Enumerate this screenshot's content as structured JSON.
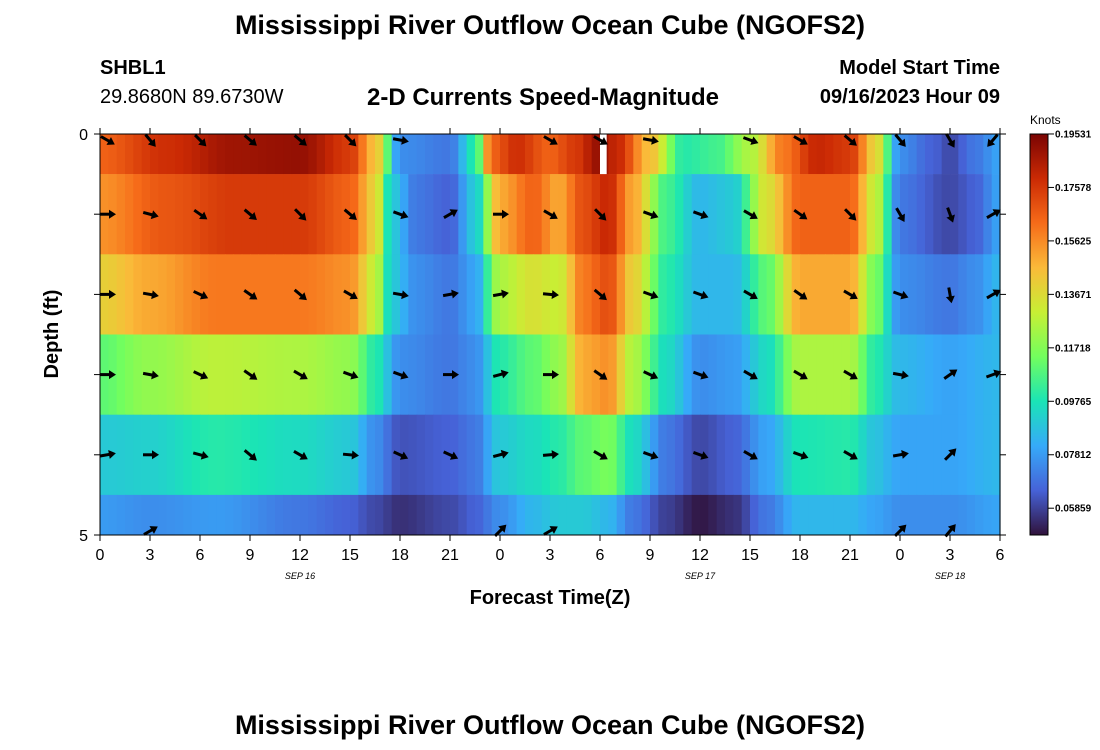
{
  "header": {
    "title": "Mississippi River Outflow Ocean Cube (NGOFS2)",
    "station_id": "SHBL1",
    "coords": "29.8680N  89.6730W",
    "subtitle": "2-D Currents Speed-Magnitude",
    "model_start_label": "Model Start Time",
    "model_start_value": "09/16/2023 Hour 09"
  },
  "footer": {
    "title": "Mississippi River Outflow Ocean Cube (NGOFS2)"
  },
  "colors": {
    "colormap": [
      "#30123b",
      "#4662d7",
      "#36aaf9",
      "#1ae4b6",
      "#72fe5e",
      "#c8ef34",
      "#faba39",
      "#f66b19",
      "#cb2a04",
      "#7a0403"
    ],
    "arrow": "#000000"
  },
  "chart_data": {
    "type": "heatmap",
    "xlabel": "Forecast Time(Z)",
    "ylabel": "Depth (ft)",
    "xlim": [
      0,
      54
    ],
    "ylim": [
      0,
      5
    ],
    "x_tick_values": [
      0,
      3,
      6,
      9,
      12,
      15,
      18,
      21,
      24,
      27,
      30,
      33,
      36,
      39,
      42,
      45,
      48,
      51,
      54
    ],
    "x_tick_labels": [
      "0",
      "3",
      "6",
      "9",
      "12",
      "15",
      "18",
      "21",
      "0",
      "3",
      "6",
      "9",
      "12",
      "15",
      "18",
      "21",
      "0",
      "3",
      "6"
    ],
    "y_tick_labels": [
      "0",
      "5"
    ],
    "date_labels": [
      {
        "x": 12,
        "label": "SEP 16"
      },
      {
        "x": 36,
        "label": "SEP 17"
      },
      {
        "x": 51,
        "label": "SEP 18"
      }
    ],
    "colorbar": {
      "label": "Knots",
      "min": 0.0488,
      "max": 0.1953,
      "tick_labels": [
        "0.19531",
        "0.17578",
        "0.15625",
        "0.13671",
        "0.11718",
        "0.09765",
        "0.07812",
        "0.05859"
      ],
      "tick_values": [
        0.19531,
        0.17578,
        0.15625,
        0.13671,
        0.11718,
        0.09765,
        0.07812,
        0.05859
      ]
    },
    "layers": [
      {
        "depth_top": 0,
        "depth_bottom": 0.5,
        "knots": [
          {
            "x": 0,
            "v": 0.165
          },
          {
            "x": 4,
            "v": 0.178
          },
          {
            "x": 8,
            "v": 0.188
          },
          {
            "x": 12,
            "v": 0.19
          },
          {
            "x": 15,
            "v": 0.175
          },
          {
            "x": 16.5,
            "v": 0.145
          },
          {
            "x": 18,
            "v": 0.075
          },
          {
            "x": 21,
            "v": 0.07
          },
          {
            "x": 22.5,
            "v": 0.1
          },
          {
            "x": 23.5,
            "v": 0.165
          },
          {
            "x": 25,
            "v": 0.178
          },
          {
            "x": 27,
            "v": 0.165
          },
          {
            "x": 28.5,
            "v": 0.175
          },
          {
            "x": 30,
            "v": 0.19
          },
          {
            "x": 31,
            "v": 0.18
          },
          {
            "x": 33,
            "v": 0.145
          },
          {
            "x": 35,
            "v": 0.1
          },
          {
            "x": 37,
            "v": 0.105
          },
          {
            "x": 39,
            "v": 0.125
          },
          {
            "x": 41,
            "v": 0.16
          },
          {
            "x": 43,
            "v": 0.18
          },
          {
            "x": 45,
            "v": 0.175
          },
          {
            "x": 46.5,
            "v": 0.14
          },
          {
            "x": 48,
            "v": 0.075
          },
          {
            "x": 50,
            "v": 0.065
          },
          {
            "x": 51,
            "v": 0.06
          },
          {
            "x": 52.5,
            "v": 0.07
          },
          {
            "x": 54,
            "v": 0.08
          }
        ]
      },
      {
        "depth_top": 0.5,
        "depth_bottom": 1.5,
        "knots": [
          {
            "x": 0,
            "v": 0.155
          },
          {
            "x": 4,
            "v": 0.168
          },
          {
            "x": 8,
            "v": 0.175
          },
          {
            "x": 12,
            "v": 0.175
          },
          {
            "x": 15,
            "v": 0.165
          },
          {
            "x": 16.5,
            "v": 0.14
          },
          {
            "x": 17.5,
            "v": 0.09
          },
          {
            "x": 19,
            "v": 0.07
          },
          {
            "x": 21,
            "v": 0.065
          },
          {
            "x": 22.5,
            "v": 0.09
          },
          {
            "x": 24,
            "v": 0.15
          },
          {
            "x": 26,
            "v": 0.165
          },
          {
            "x": 27.5,
            "v": 0.15
          },
          {
            "x": 29,
            "v": 0.17
          },
          {
            "x": 30.5,
            "v": 0.18
          },
          {
            "x": 32,
            "v": 0.15
          },
          {
            "x": 34,
            "v": 0.105
          },
          {
            "x": 36,
            "v": 0.085
          },
          {
            "x": 38,
            "v": 0.09
          },
          {
            "x": 40,
            "v": 0.135
          },
          {
            "x": 42,
            "v": 0.165
          },
          {
            "x": 45,
            "v": 0.165
          },
          {
            "x": 46.5,
            "v": 0.13
          },
          {
            "x": 48,
            "v": 0.07
          },
          {
            "x": 51,
            "v": 0.06
          },
          {
            "x": 52.5,
            "v": 0.065
          },
          {
            "x": 54,
            "v": 0.08
          }
        ]
      },
      {
        "depth_top": 1.5,
        "depth_bottom": 2.5,
        "knots": [
          {
            "x": 0,
            "v": 0.14
          },
          {
            "x": 3,
            "v": 0.15
          },
          {
            "x": 7,
            "v": 0.16
          },
          {
            "x": 12,
            "v": 0.16
          },
          {
            "x": 15,
            "v": 0.155
          },
          {
            "x": 16.5,
            "v": 0.13
          },
          {
            "x": 17.5,
            "v": 0.09
          },
          {
            "x": 19,
            "v": 0.075
          },
          {
            "x": 21,
            "v": 0.07
          },
          {
            "x": 22.5,
            "v": 0.08
          },
          {
            "x": 24,
            "v": 0.125
          },
          {
            "x": 26,
            "v": 0.135
          },
          {
            "x": 27.5,
            "v": 0.13
          },
          {
            "x": 29,
            "v": 0.16
          },
          {
            "x": 30.5,
            "v": 0.17
          },
          {
            "x": 32,
            "v": 0.14
          },
          {
            "x": 34,
            "v": 0.1
          },
          {
            "x": 36,
            "v": 0.085
          },
          {
            "x": 38,
            "v": 0.085
          },
          {
            "x": 40,
            "v": 0.11
          },
          {
            "x": 42,
            "v": 0.15
          },
          {
            "x": 45,
            "v": 0.15
          },
          {
            "x": 46.5,
            "v": 0.115
          },
          {
            "x": 48,
            "v": 0.075
          },
          {
            "x": 51,
            "v": 0.07
          },
          {
            "x": 52.5,
            "v": 0.075
          },
          {
            "x": 54,
            "v": 0.085
          }
        ]
      },
      {
        "depth_top": 2.5,
        "depth_bottom": 3.5,
        "knots": [
          {
            "x": 0,
            "v": 0.11
          },
          {
            "x": 3,
            "v": 0.12
          },
          {
            "x": 7,
            "v": 0.128
          },
          {
            "x": 12,
            "v": 0.125
          },
          {
            "x": 15,
            "v": 0.12
          },
          {
            "x": 16.5,
            "v": 0.1
          },
          {
            "x": 18,
            "v": 0.075
          },
          {
            "x": 21,
            "v": 0.07
          },
          {
            "x": 22.5,
            "v": 0.075
          },
          {
            "x": 24,
            "v": 0.1
          },
          {
            "x": 26,
            "v": 0.11
          },
          {
            "x": 27.5,
            "v": 0.12
          },
          {
            "x": 29,
            "v": 0.15
          },
          {
            "x": 30.5,
            "v": 0.155
          },
          {
            "x": 32,
            "v": 0.125
          },
          {
            "x": 34,
            "v": 0.095
          },
          {
            "x": 36,
            "v": 0.075
          },
          {
            "x": 38,
            "v": 0.078
          },
          {
            "x": 40,
            "v": 0.095
          },
          {
            "x": 42,
            "v": 0.125
          },
          {
            "x": 45,
            "v": 0.125
          },
          {
            "x": 46.5,
            "v": 0.1
          },
          {
            "x": 48,
            "v": 0.085
          },
          {
            "x": 51,
            "v": 0.08
          },
          {
            "x": 54,
            "v": 0.085
          }
        ]
      },
      {
        "depth_top": 3.5,
        "depth_bottom": 4.5,
        "knots": [
          {
            "x": 0,
            "v": 0.09
          },
          {
            "x": 3,
            "v": 0.092
          },
          {
            "x": 7,
            "v": 0.1
          },
          {
            "x": 12,
            "v": 0.095
          },
          {
            "x": 15,
            "v": 0.09
          },
          {
            "x": 16.5,
            "v": 0.075
          },
          {
            "x": 18,
            "v": 0.062
          },
          {
            "x": 21,
            "v": 0.065
          },
          {
            "x": 22.5,
            "v": 0.07
          },
          {
            "x": 24,
            "v": 0.09
          },
          {
            "x": 26,
            "v": 0.095
          },
          {
            "x": 27.5,
            "v": 0.1
          },
          {
            "x": 29,
            "v": 0.11
          },
          {
            "x": 30.5,
            "v": 0.115
          },
          {
            "x": 32,
            "v": 0.095
          },
          {
            "x": 34,
            "v": 0.07
          },
          {
            "x": 36,
            "v": 0.06
          },
          {
            "x": 38,
            "v": 0.065
          },
          {
            "x": 40,
            "v": 0.08
          },
          {
            "x": 42,
            "v": 0.098
          },
          {
            "x": 45,
            "v": 0.1
          },
          {
            "x": 46.5,
            "v": 0.088
          },
          {
            "x": 48,
            "v": 0.08
          },
          {
            "x": 51,
            "v": 0.08
          },
          {
            "x": 54,
            "v": 0.085
          }
        ]
      },
      {
        "depth_top": 4.5,
        "depth_bottom": 5,
        "knots": [
          {
            "x": 0,
            "v": 0.078
          },
          {
            "x": 3,
            "v": 0.075
          },
          {
            "x": 7,
            "v": 0.078
          },
          {
            "x": 12,
            "v": 0.07
          },
          {
            "x": 15,
            "v": 0.065
          },
          {
            "x": 16.5,
            "v": 0.06
          },
          {
            "x": 18,
            "v": 0.055
          },
          {
            "x": 21,
            "v": 0.06
          },
          {
            "x": 22.5,
            "v": 0.065
          },
          {
            "x": 24,
            "v": 0.075
          },
          {
            "x": 26,
            "v": 0.085
          },
          {
            "x": 27.5,
            "v": 0.09
          },
          {
            "x": 29,
            "v": 0.09
          },
          {
            "x": 30.5,
            "v": 0.085
          },
          {
            "x": 32,
            "v": 0.07
          },
          {
            "x": 34,
            "v": 0.058
          },
          {
            "x": 36,
            "v": 0.05
          },
          {
            "x": 38,
            "v": 0.055
          },
          {
            "x": 40,
            "v": 0.07
          },
          {
            "x": 42,
            "v": 0.085
          },
          {
            "x": 45,
            "v": 0.085
          },
          {
            "x": 46.5,
            "v": 0.08
          },
          {
            "x": 48,
            "v": 0.075
          },
          {
            "x": 51,
            "v": 0.075
          },
          {
            "x": 54,
            "v": 0.08
          }
        ]
      }
    ],
    "arrow_times": [
      0,
      3,
      6,
      9,
      12,
      15,
      18,
      21,
      24,
      27,
      30,
      33,
      36,
      39,
      42,
      45,
      48,
      51,
      54
    ],
    "arrow_depths": [
      0,
      1,
      2,
      3,
      4,
      5
    ],
    "arrow_directions_deg": [
      [
        120,
        140,
        135,
        130,
        130,
        135,
        100,
        0,
        0,
        120,
        120,
        100,
        0,
        110,
        120,
        130,
        140,
        150,
        220
      ],
      [
        90,
        105,
        125,
        130,
        135,
        130,
        110,
        60,
        90,
        120,
        135,
        110,
        110,
        120,
        125,
        135,
        150,
        160,
        60
      ],
      [
        90,
        100,
        115,
        125,
        130,
        120,
        100,
        80,
        80,
        95,
        130,
        110,
        110,
        120,
        125,
        120,
        110,
        170,
        60
      ],
      [
        90,
        100,
        115,
        125,
        120,
        110,
        110,
        90,
        75,
        90,
        125,
        115,
        110,
        120,
        120,
        120,
        100,
        55,
        70
      ],
      [
        80,
        90,
        105,
        130,
        120,
        95,
        115,
        115,
        75,
        85,
        120,
        110,
        110,
        120,
        110,
        120,
        80,
        45,
        0
      ],
      [
        0,
        60,
        0,
        0,
        0,
        0,
        0,
        0,
        45,
        60,
        0,
        0,
        0,
        0,
        0,
        0,
        45,
        40,
        0
      ]
    ],
    "arrow_visible": [
      [
        1,
        1,
        1,
        1,
        1,
        1,
        1,
        0,
        0,
        1,
        1,
        1,
        0,
        1,
        1,
        1,
        1,
        1,
        1
      ],
      [
        1,
        1,
        1,
        1,
        1,
        1,
        1,
        1,
        1,
        1,
        1,
        1,
        1,
        1,
        1,
        1,
        1,
        1,
        1
      ],
      [
        1,
        1,
        1,
        1,
        1,
        1,
        1,
        1,
        1,
        1,
        1,
        1,
        1,
        1,
        1,
        1,
        1,
        1,
        1
      ],
      [
        1,
        1,
        1,
        1,
        1,
        1,
        1,
        1,
        1,
        1,
        1,
        1,
        1,
        1,
        1,
        1,
        1,
        1,
        1
      ],
      [
        1,
        1,
        1,
        1,
        1,
        1,
        1,
        1,
        1,
        1,
        1,
        1,
        1,
        1,
        1,
        1,
        1,
        1,
        0
      ],
      [
        0,
        1,
        0,
        0,
        0,
        0,
        0,
        0,
        1,
        1,
        0,
        0,
        0,
        0,
        0,
        0,
        1,
        1,
        0
      ]
    ],
    "missing_data": [
      {
        "x_start": 30,
        "x_end": 30.4,
        "depth_top": 0,
        "depth_bottom": 0.5
      }
    ]
  }
}
